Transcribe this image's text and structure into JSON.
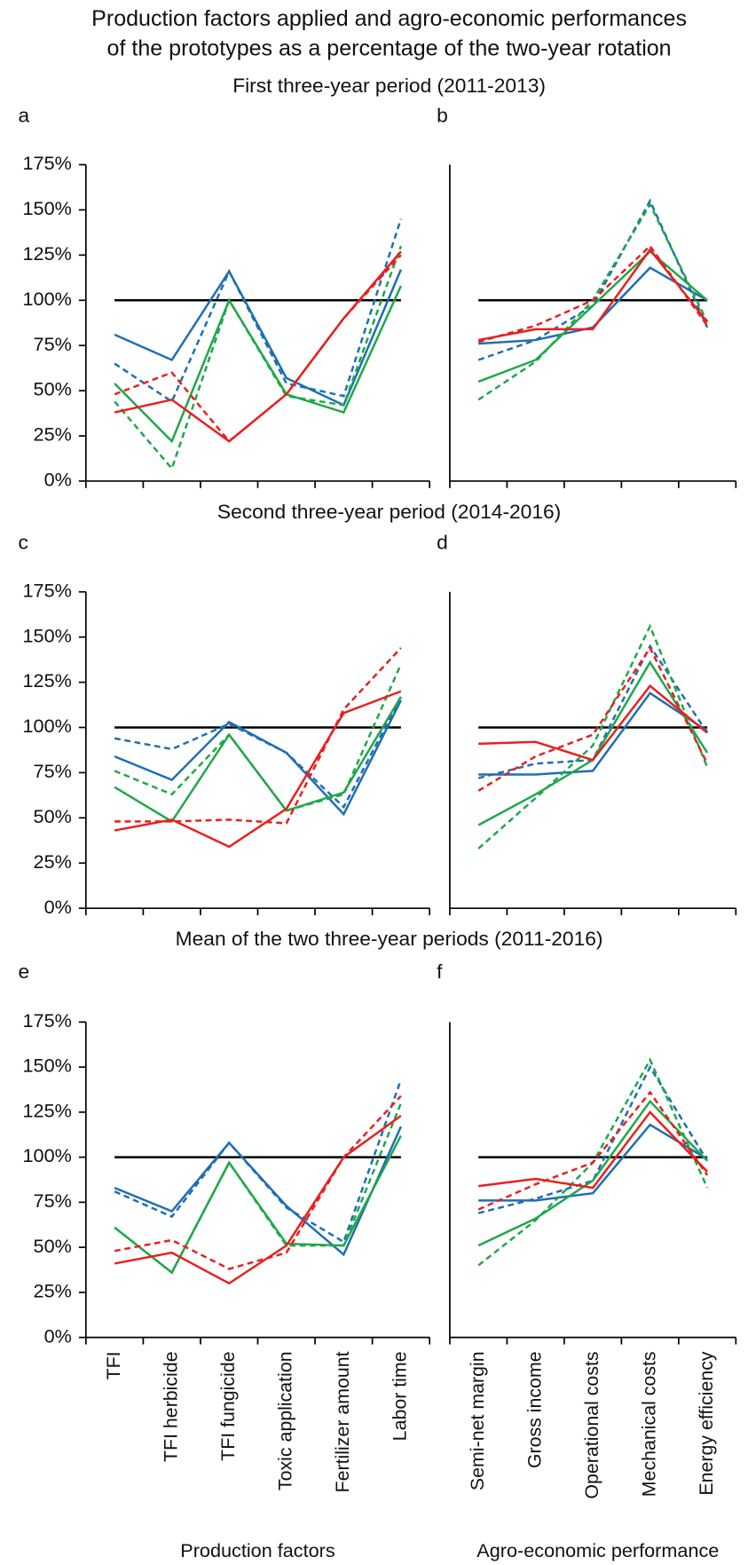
{
  "title": [
    "Production factors applied and agro-economic performances",
    "of the prototypes as a percentage of the two-year rotation"
  ],
  "period_titles": [
    "First three-year period (2011-2013)",
    "Second three-year period (2014-2016)",
    "Mean of the two three-year periods (2011-2016)"
  ],
  "chart_data": [
    {
      "type": "line",
      "panel": "a",
      "categories": [
        null,
        null,
        null,
        null,
        null,
        null
      ],
      "ylim": [
        0,
        175
      ],
      "yticks": [
        {
          "value": 0,
          "label": "0%"
        },
        {
          "value": 25,
          "label": "25%"
        },
        {
          "value": 50,
          "label": "50%"
        },
        {
          "value": 75,
          "label": "75%"
        },
        {
          "value": 100,
          "label": "100%"
        },
        {
          "value": 125,
          "label": "125%"
        },
        {
          "value": 150,
          "label": "150%"
        },
        {
          "value": 175,
          "label": "175%"
        }
      ],
      "series": [
        {
          "color": "#000000",
          "dash": false,
          "values": [
            100,
            100,
            100,
            100,
            100,
            100
          ]
        },
        {
          "color": "#1f6eb4",
          "dash": false,
          "values": [
            81,
            67,
            116,
            57,
            42,
            117
          ]
        },
        {
          "color": "#1f6eb4",
          "dash": true,
          "values": [
            65,
            44,
            116,
            54,
            47,
            145
          ]
        },
        {
          "color": "#1ea84a",
          "dash": false,
          "values": [
            54,
            22,
            100,
            48,
            38,
            108
          ]
        },
        {
          "color": "#1ea84a",
          "dash": true,
          "values": [
            44,
            7,
            100,
            47,
            42,
            130
          ]
        },
        {
          "color": "#e8201f",
          "dash": false,
          "values": [
            38,
            45,
            22,
            48,
            90,
            127
          ]
        },
        {
          "color": "#e8201f",
          "dash": true,
          "values": [
            48,
            60,
            22,
            48,
            90,
            125
          ]
        }
      ]
    },
    {
      "type": "line",
      "panel": "b",
      "categories": [
        null,
        null,
        null,
        null,
        null
      ],
      "ylim": [
        0,
        175
      ],
      "series": [
        {
          "color": "#000000",
          "dash": false,
          "values": [
            100,
            100,
            100,
            100,
            100
          ]
        },
        {
          "color": "#1f6eb4",
          "dash": false,
          "values": [
            76,
            78,
            85,
            118,
            100
          ]
        },
        {
          "color": "#1f6eb4",
          "dash": true,
          "values": [
            67,
            78,
            97,
            155,
            85
          ]
        },
        {
          "color": "#1ea84a",
          "dash": false,
          "values": [
            55,
            67,
            97,
            127,
            100
          ]
        },
        {
          "color": "#1ea84a",
          "dash": true,
          "values": [
            45,
            66,
            100,
            153,
            88
          ]
        },
        {
          "color": "#e8201f",
          "dash": false,
          "values": [
            78,
            84,
            84,
            128,
            88
          ]
        },
        {
          "color": "#e8201f",
          "dash": true,
          "values": [
            77,
            86,
            100,
            130,
            86
          ]
        }
      ]
    },
    {
      "type": "line",
      "panel": "c",
      "categories": [
        null,
        null,
        null,
        null,
        null,
        null
      ],
      "ylim": [
        0,
        175
      ],
      "yticks": [
        {
          "value": 0,
          "label": "0%"
        },
        {
          "value": 25,
          "label": "25%"
        },
        {
          "value": 50,
          "label": "50%"
        },
        {
          "value": 75,
          "label": "75%"
        },
        {
          "value": 100,
          "label": "100%"
        },
        {
          "value": 125,
          "label": "125%"
        },
        {
          "value": 150,
          "label": "150%"
        },
        {
          "value": 175,
          "label": "175%"
        }
      ],
      "series": [
        {
          "color": "#000000",
          "dash": false,
          "values": [
            100,
            100,
            100,
            100,
            100,
            100
          ]
        },
        {
          "color": "#1f6eb4",
          "dash": false,
          "values": [
            84,
            71,
            103,
            86,
            52,
            115
          ]
        },
        {
          "color": "#1f6eb4",
          "dash": true,
          "values": [
            94,
            88,
            102,
            86,
            56,
            117
          ]
        },
        {
          "color": "#1ea84a",
          "dash": false,
          "values": [
            67,
            48,
            96,
            54,
            64,
            117
          ]
        },
        {
          "color": "#1ea84a",
          "dash": true,
          "values": [
            76,
            63,
            96,
            54,
            63,
            135
          ]
        },
        {
          "color": "#e8201f",
          "dash": false,
          "values": [
            43,
            49,
            34,
            55,
            108,
            120
          ]
        },
        {
          "color": "#e8201f",
          "dash": true,
          "values": [
            48,
            48,
            49,
            47,
            110,
            144
          ]
        }
      ]
    },
    {
      "type": "line",
      "panel": "d",
      "categories": [
        null,
        null,
        null,
        null,
        null
      ],
      "ylim": [
        0,
        175
      ],
      "series": [
        {
          "color": "#000000",
          "dash": false,
          "values": [
            100,
            100,
            100,
            100,
            100
          ]
        },
        {
          "color": "#1f6eb4",
          "dash": false,
          "values": [
            74,
            74,
            76,
            119,
            98
          ]
        },
        {
          "color": "#1f6eb4",
          "dash": true,
          "values": [
            72,
            80,
            82,
            145,
            97
          ]
        },
        {
          "color": "#1ea84a",
          "dash": false,
          "values": [
            46,
            63,
            82,
            136,
            86
          ]
        },
        {
          "color": "#1ea84a",
          "dash": true,
          "values": [
            33,
            61,
            90,
            156,
            78
          ]
        },
        {
          "color": "#e8201f",
          "dash": false,
          "values": [
            91,
            92,
            82,
            123,
            97
          ]
        },
        {
          "color": "#e8201f",
          "dash": true,
          "values": [
            65,
            84,
            96,
            144,
            80
          ]
        }
      ]
    },
    {
      "type": "line",
      "panel": "e",
      "categories": [
        "TFI",
        "TFI herbicide",
        "TFI fungicide",
        "Toxic application",
        "Fertilizer amount",
        "Labor time"
      ],
      "x_label": "Production factors",
      "ylim": [
        0,
        175
      ],
      "yticks": [
        {
          "value": 0,
          "label": "0%"
        },
        {
          "value": 25,
          "label": "25%"
        },
        {
          "value": 50,
          "label": "50%"
        },
        {
          "value": 75,
          "label": "75%"
        },
        {
          "value": 100,
          "label": "100%"
        },
        {
          "value": 125,
          "label": "125%"
        },
        {
          "value": 150,
          "label": "150%"
        },
        {
          "value": 175,
          "label": "175%"
        }
      ],
      "series": [
        {
          "color": "#000000",
          "dash": false,
          "values": [
            100,
            100,
            100,
            100,
            100,
            100
          ]
        },
        {
          "color": "#1f6eb4",
          "dash": false,
          "values": [
            83,
            70,
            108,
            73,
            46,
            117
          ]
        },
        {
          "color": "#1f6eb4",
          "dash": true,
          "values": [
            81,
            67,
            108,
            72,
            53,
            143
          ]
        },
        {
          "color": "#1ea84a",
          "dash": false,
          "values": [
            61,
            36,
            97,
            52,
            51,
            112
          ]
        },
        {
          "color": "#1ea84a",
          "dash": true,
          "values": [
            61,
            36,
            97,
            51,
            51,
            130
          ]
        },
        {
          "color": "#e8201f",
          "dash": false,
          "values": [
            41,
            47,
            30,
            51,
            100,
            123
          ]
        },
        {
          "color": "#e8201f",
          "dash": true,
          "values": [
            48,
            54,
            38,
            47,
            100,
            134
          ]
        }
      ]
    },
    {
      "type": "line",
      "panel": "f",
      "categories": [
        "Semi-net margin",
        "Gross income",
        "Operational costs",
        "Mechanical costs",
        "Energy efficiency"
      ],
      "x_label": "Agro-economic performance",
      "ylim": [
        0,
        175
      ],
      "series": [
        {
          "color": "#000000",
          "dash": false,
          "values": [
            100,
            100,
            100,
            100,
            100
          ]
        },
        {
          "color": "#1f6eb4",
          "dash": false,
          "values": [
            76,
            76,
            80,
            118,
            99
          ]
        },
        {
          "color": "#1f6eb4",
          "dash": true,
          "values": [
            69,
            77,
            87,
            150,
            98
          ]
        },
        {
          "color": "#1ea84a",
          "dash": false,
          "values": [
            51,
            66,
            87,
            131,
            98
          ]
        },
        {
          "color": "#1ea84a",
          "dash": true,
          "values": [
            40,
            65,
            97,
            154,
            83
          ]
        },
        {
          "color": "#e8201f",
          "dash": false,
          "values": [
            84,
            88,
            83,
            125,
            92
          ]
        },
        {
          "color": "#e8201f",
          "dash": true,
          "values": [
            71,
            85,
            97,
            136,
            90
          ]
        }
      ]
    }
  ]
}
